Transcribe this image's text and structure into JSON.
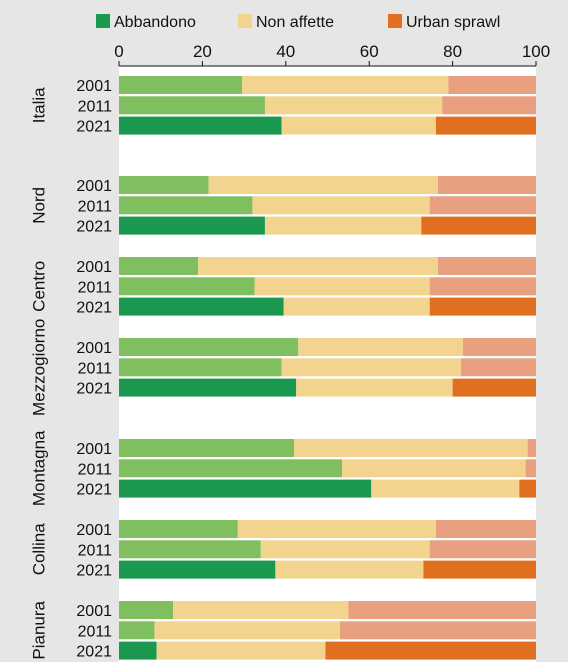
{
  "chart_data": {
    "type": "bar",
    "orientation": "horizontal",
    "stacked": true,
    "xlim": [
      0,
      100
    ],
    "xticks": [
      0,
      20,
      40,
      60,
      80,
      100
    ],
    "grid": false,
    "legend_position": "top",
    "series": [
      {
        "name": "Abbandono",
        "color": "#1a9850",
        "light_color": "#7fbf5f"
      },
      {
        "name": "Non affette",
        "color": "#f2d48f",
        "light_color": "#f2d48f"
      },
      {
        "name": "Urban sprawl",
        "color": "#e07020",
        "light_color": "#e8a080"
      }
    ],
    "groups": [
      {
        "name": "Italia",
        "rows": [
          {
            "year": "2001",
            "values": [
              29.5,
              49.5,
              21.0
            ]
          },
          {
            "year": "2011",
            "values": [
              35.0,
              42.5,
              22.5
            ]
          },
          {
            "year": "2021",
            "values": [
              39.0,
              37.0,
              24.0
            ]
          }
        ]
      },
      {
        "name": "Nord",
        "rows": [
          {
            "year": "2001",
            "values": [
              21.5,
              55.0,
              23.5
            ]
          },
          {
            "year": "2011",
            "values": [
              32.0,
              42.5,
              25.5
            ]
          },
          {
            "year": "2021",
            "values": [
              35.0,
              37.5,
              27.5
            ]
          }
        ]
      },
      {
        "name": "Centro",
        "rows": [
          {
            "year": "2001",
            "values": [
              19.0,
              57.5,
              23.5
            ]
          },
          {
            "year": "2011",
            "values": [
              32.5,
              42.0,
              25.5
            ]
          },
          {
            "year": "2021",
            "values": [
              39.5,
              35.0,
              25.5
            ]
          }
        ]
      },
      {
        "name": "Mezzogiorno",
        "rows": [
          {
            "year": "2001",
            "values": [
              43.0,
              39.5,
              17.5
            ]
          },
          {
            "year": "2011",
            "values": [
              39.0,
              43.0,
              18.0
            ]
          },
          {
            "year": "2021",
            "values": [
              42.5,
              37.5,
              20.0
            ]
          }
        ]
      },
      {
        "name": "Montagna",
        "rows": [
          {
            "year": "2001",
            "values": [
              42.0,
              56.0,
              2.0
            ]
          },
          {
            "year": "2011",
            "values": [
              53.5,
              44.0,
              2.5
            ]
          },
          {
            "year": "2021",
            "values": [
              60.5,
              35.5,
              4.0
            ]
          }
        ]
      },
      {
        "name": "Collina",
        "rows": [
          {
            "year": "2001",
            "values": [
              28.5,
              47.5,
              24.0
            ]
          },
          {
            "year": "2011",
            "values": [
              34.0,
              40.5,
              25.5
            ]
          },
          {
            "year": "2021",
            "values": [
              37.5,
              35.5,
              27.0
            ]
          }
        ]
      },
      {
        "name": "Pianura",
        "rows": [
          {
            "year": "2001",
            "values": [
              13.0,
              42.0,
              45.0
            ]
          },
          {
            "year": "2011",
            "values": [
              8.5,
              44.5,
              47.0
            ]
          },
          {
            "year": "2021",
            "values": [
              9.0,
              40.5,
              50.5
            ]
          }
        ]
      }
    ]
  }
}
